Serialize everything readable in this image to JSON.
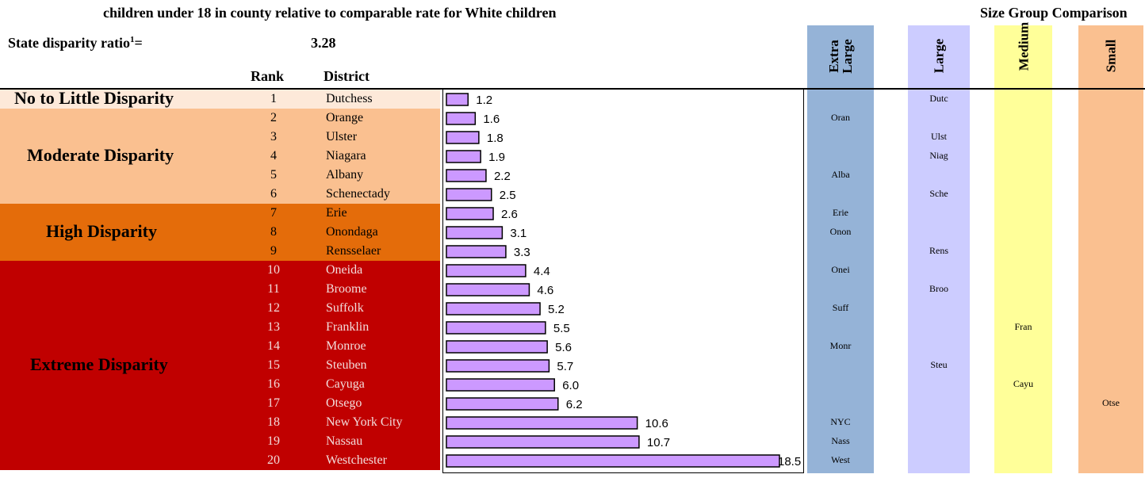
{
  "header": {
    "subtitle": "children under 18 in county relative to comparable rate for White children",
    "size_group_title": "Size Group Comparison",
    "state_ratio_label": "State disparity ratio",
    "state_ratio_footnote": "1",
    "state_ratio_equals": "=",
    "state_ratio_value": "3.28",
    "rank_header": "Rank",
    "district_header": "District"
  },
  "categories": [
    {
      "label": "No to Little Disparity",
      "from_rank": 1,
      "to_rank": 1,
      "color": "#FDE9D9"
    },
    {
      "label": "Moderate Disparity",
      "from_rank": 2,
      "to_rank": 6,
      "color": "#FAC090"
    },
    {
      "label": "High Disparity",
      "from_rank": 7,
      "to_rank": 9,
      "color": "#E46C0A"
    },
    {
      "label": "Extreme Disparity",
      "from_rank": 10,
      "to_rank": 20,
      "color": "#C00000"
    }
  ],
  "size_groups": [
    {
      "name": "Extra Large",
      "color": "#95B3D7"
    },
    {
      "name": "Large",
      "color": "#CCCCFF"
    },
    {
      "name": "Medium",
      "color": "#FFFF99"
    },
    {
      "name": "Small",
      "color": "#FAC090"
    }
  ],
  "chart_data": {
    "type": "bar",
    "orientation": "horizontal",
    "title": "",
    "xlabel": "",
    "ylabel": "",
    "bar_color": "#CC99FF",
    "categories": [
      "Dutchess",
      "Orange",
      "Ulster",
      "Niagara",
      "Albany",
      "Schenectady",
      "Erie",
      "Onondaga",
      "Rensselaer",
      "Oneida",
      "Broome",
      "Suffolk",
      "Franklin",
      "Monroe",
      "Steuben",
      "Cayuga",
      "Otsego",
      "New York City",
      "Nassau",
      "Westchester"
    ],
    "ranks": [
      1,
      2,
      3,
      4,
      5,
      6,
      7,
      8,
      9,
      10,
      11,
      12,
      13,
      14,
      15,
      16,
      17,
      18,
      19,
      20
    ],
    "values": [
      1.2,
      1.6,
      1.8,
      1.9,
      2.2,
      2.5,
      2.6,
      3.1,
      3.3,
      4.4,
      4.6,
      5.2,
      5.5,
      5.6,
      5.7,
      6.0,
      6.2,
      10.6,
      10.7,
      18.5
    ],
    "value_labels": [
      "1.2",
      "1.6",
      "1.8",
      "1.9",
      "2.2",
      "2.5",
      "2.6",
      "3.1",
      "3.3",
      "4.4",
      "4.6",
      "5.2",
      "5.5",
      "5.6",
      "5.7",
      "6.0",
      "6.2",
      "10.6",
      "10.7",
      "18.5"
    ],
    "abbreviations": [
      "Dutc",
      "Oran",
      "Ulst",
      "Niag",
      "Alba",
      "Sche",
      "Erie",
      "Onon",
      "Rens",
      "Onei",
      "Broo",
      "Suff",
      "Fran",
      "Monr",
      "Steu",
      "Cayu",
      "Otse",
      "NYC",
      "Nass",
      "West"
    ],
    "size_group": [
      1,
      0,
      1,
      1,
      0,
      1,
      0,
      0,
      1,
      0,
      1,
      0,
      2,
      0,
      1,
      2,
      3,
      0,
      0,
      0
    ],
    "xlim": [
      0,
      18.5
    ],
    "grid": false,
    "legend": "none"
  }
}
